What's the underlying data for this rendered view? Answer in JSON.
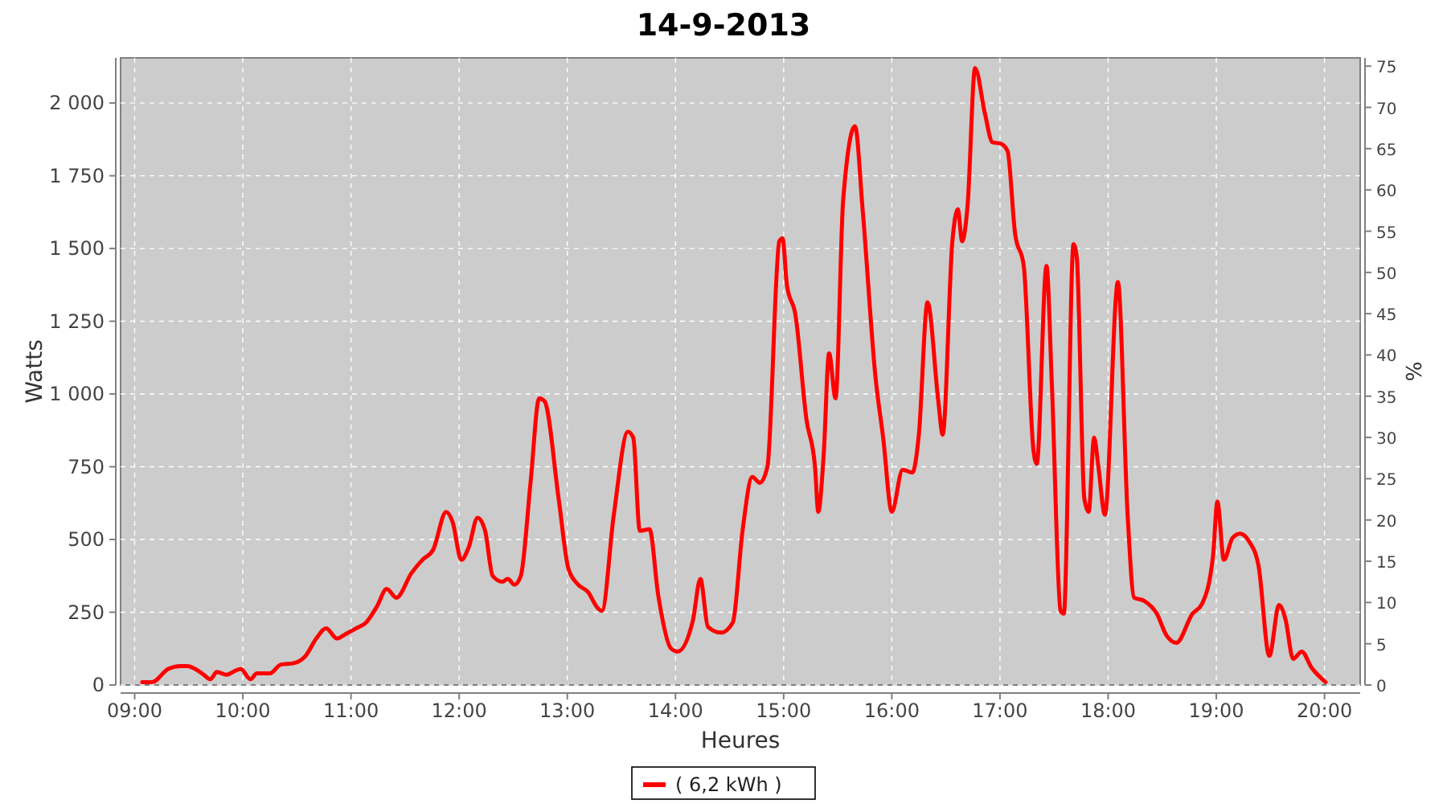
{
  "chart_data": {
    "type": "line",
    "title": "14-9-2013",
    "xlabel": "Heures",
    "ylabel": "Watts",
    "y2label": "%",
    "xlim": [
      8.87,
      20.33
    ],
    "xticks": [
      {
        "value": 9,
        "label": "09:00"
      },
      {
        "value": 10,
        "label": "10:00"
      },
      {
        "value": 11,
        "label": "11:00"
      },
      {
        "value": 12,
        "label": "12:00"
      },
      {
        "value": 13,
        "label": "13:00"
      },
      {
        "value": 14,
        "label": "14:00"
      },
      {
        "value": 15,
        "label": "15:00"
      },
      {
        "value": 16,
        "label": "16:00"
      },
      {
        "value": 17,
        "label": "17:00"
      },
      {
        "value": 18,
        "label": "18:00"
      },
      {
        "value": 19,
        "label": "19:00"
      },
      {
        "value": 20,
        "label": "20:00"
      }
    ],
    "ylim": [
      0,
      2155
    ],
    "yticks": [
      0,
      250,
      500,
      750,
      {
        "value": 1000,
        "label": "1 000"
      },
      {
        "value": 1250,
        "label": "1 250"
      },
      {
        "value": 1500,
        "label": "1 500"
      },
      {
        "value": 1750,
        "label": "1 750"
      },
      {
        "value": 2000,
        "label": "2 000"
      }
    ],
    "y2lim": [
      0,
      76
    ],
    "y2ticks": [
      0,
      5,
      10,
      15,
      20,
      25,
      30,
      35,
      40,
      45,
      50,
      55,
      60,
      65,
      70,
      75
    ],
    "grid": true,
    "legend": "bottom",
    "marker": "none",
    "line_style": "solid",
    "series": [
      {
        "name": "( 6,2 kWh )",
        "color": "#ff0000",
        "x": [
          9.07,
          9.16,
          9.31,
          9.42,
          9.49,
          9.56,
          9.64,
          9.7,
          9.76,
          9.85,
          9.91,
          9.98,
          10.07,
          10.13,
          10.25,
          10.35,
          10.47,
          10.58,
          10.68,
          10.77,
          10.87,
          10.95,
          11.05,
          11.14,
          11.24,
          11.33,
          11.42,
          11.56,
          11.66,
          11.76,
          11.88,
          11.94,
          12.02,
          12.09,
          12.17,
          12.24,
          12.31,
          12.4,
          12.45,
          12.51,
          12.57,
          12.66,
          12.74,
          12.79,
          12.92,
          13.01,
          13.1,
          13.19,
          13.28,
          13.32,
          13.43,
          13.56,
          13.61,
          13.67,
          13.76,
          13.84,
          13.96,
          14.02,
          14.16,
          14.23,
          14.3,
          14.42,
          14.53,
          14.62,
          14.71,
          14.78,
          14.85,
          14.96,
          14.99,
          15.03,
          15.11,
          15.21,
          15.29,
          15.32,
          15.37,
          15.42,
          15.48,
          15.55,
          15.66,
          15.73,
          15.85,
          15.92,
          16.0,
          16.1,
          16.19,
          16.25,
          16.33,
          16.43,
          16.47,
          16.56,
          16.61,
          16.65,
          16.7,
          16.77,
          16.86,
          16.93,
          17.01,
          17.07,
          17.14,
          17.22,
          17.31,
          17.34,
          17.43,
          17.48,
          17.56,
          17.59,
          17.68,
          17.71,
          17.78,
          17.82,
          17.87,
          17.91,
          17.97,
          18.09,
          18.18,
          18.24,
          18.33,
          18.45,
          18.54,
          18.63,
          18.78,
          18.87,
          18.97,
          19.01,
          19.07,
          19.15,
          19.22,
          19.3,
          19.39,
          19.49,
          19.58,
          19.64,
          19.71,
          19.79,
          19.88,
          20.01
        ],
        "values": [
          10,
          10,
          55,
          65,
          65,
          55,
          35,
          20,
          45,
          35,
          45,
          55,
          20,
          40,
          40,
          70,
          75,
          100,
          160,
          195,
          160,
          175,
          195,
          215,
          270,
          330,
          300,
          385,
          430,
          465,
          595,
          560,
          430,
          475,
          575,
          530,
          375,
          355,
          365,
          345,
          375,
          695,
          985,
          975,
          640,
          400,
          345,
          320,
          265,
          255,
          585,
          870,
          850,
          530,
          535,
          310,
          125,
          115,
          220,
          365,
          200,
          180,
          215,
          530,
          715,
          695,
          750,
          1525,
          1535,
          1375,
          1270,
          915,
          750,
          595,
          790,
          1140,
          985,
          1665,
          1920,
          1635,
          1055,
          850,
          595,
          740,
          730,
          860,
          1315,
          975,
          860,
          1525,
          1635,
          1525,
          1645,
          2120,
          1965,
          1865,
          1860,
          1835,
          1550,
          1440,
          805,
          760,
          1440,
          1030,
          255,
          245,
          1515,
          1470,
          640,
          595,
          850,
          750,
          585,
          1385,
          585,
          300,
          290,
          245,
          170,
          145,
          245,
          280,
          445,
          630,
          430,
          505,
          520,
          495,
          410,
          100,
          275,
          225,
          90,
          115,
          60,
          10
        ]
      }
    ]
  }
}
